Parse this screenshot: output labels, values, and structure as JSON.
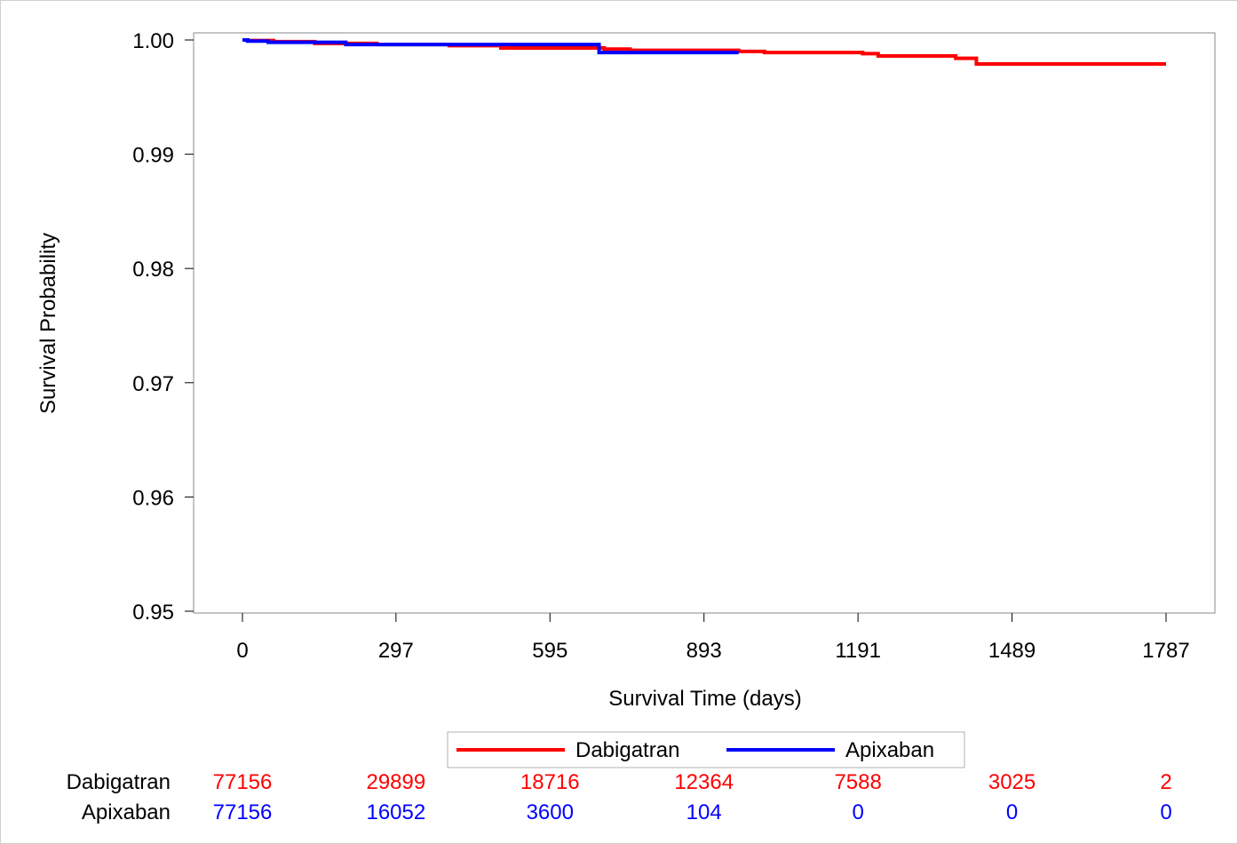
{
  "chart_data": {
    "type": "line",
    "title": "",
    "xlabel": "Survival Time (days)",
    "ylabel": "Survival Probability",
    "xlim": [
      0,
      1787
    ],
    "ylim": [
      0.95,
      1.0
    ],
    "x_ticks": [
      0,
      297,
      595,
      893,
      1191,
      1489,
      1787
    ],
    "x_tick_labels": [
      "0",
      "297",
      "595",
      "893",
      "1191",
      "1489",
      "1787"
    ],
    "y_ticks": [
      0.95,
      0.96,
      0.97,
      0.98,
      0.99,
      1.0
    ],
    "y_tick_labels": [
      "0.95",
      "0.96",
      "0.97",
      "0.98",
      "0.99",
      "1.00"
    ],
    "grid": false,
    "legend_position": "bottom-center",
    "series": [
      {
        "name": "Dabigatran",
        "color": "#ff0000",
        "step": true,
        "x": [
          0,
          10,
          60,
          140,
          260,
          400,
          500,
          700,
          750,
          960,
          1010,
          1200,
          1230,
          1380,
          1420,
          1787
        ],
        "y": [
          1.0,
          0.99995,
          0.99985,
          0.9997,
          0.9996,
          0.9995,
          0.9993,
          0.9992,
          0.9991,
          0.999,
          0.9989,
          0.9988,
          0.9986,
          0.9984,
          0.9979,
          0.9979
        ]
      },
      {
        "name": "Apixaban",
        "color": "#0000ff",
        "step": true,
        "x": [
          0,
          10,
          50,
          200,
          690,
          960
        ],
        "y": [
          1.0,
          0.9999,
          0.9998,
          0.9996,
          0.9989,
          0.9989
        ]
      }
    ],
    "risk_table": {
      "rows": [
        {
          "name": "Dabigatran",
          "color": "#ff0000",
          "values": [
            "77156",
            "29899",
            "18716",
            "12364",
            "7588",
            "3025",
            "2"
          ]
        },
        {
          "name": "Apixaban",
          "color": "#0000ff",
          "values": [
            "77156",
            "16052",
            "3600",
            "104",
            "0",
            "0",
            "0"
          ]
        }
      ]
    }
  }
}
